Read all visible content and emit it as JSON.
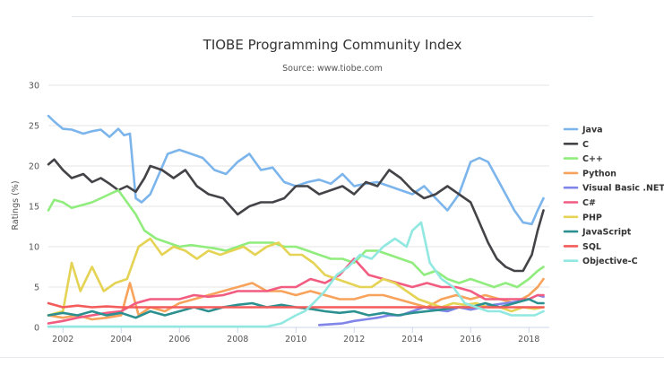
{
  "chart_data": {
    "type": "line",
    "title": "TIOBE Programming Community Index",
    "subtitle": "Source: www.tiobe.com",
    "xlabel": "",
    "ylabel": "Ratings (%)",
    "xlim": [
      2001.5,
      2018.7
    ],
    "ylim": [
      0,
      30
    ],
    "xticks": [
      2002,
      2004,
      2006,
      2008,
      2010,
      2012,
      2014,
      2016,
      2018
    ],
    "xtick_labels": [
      "2002",
      "2004",
      "2006",
      "2008",
      "2010",
      "2012",
      "2014",
      "2016",
      "2018"
    ],
    "yticks": [
      0,
      5,
      10,
      15,
      20,
      25,
      30
    ],
    "ytick_labels": [
      "0",
      "5",
      "10",
      "15",
      "20",
      "25",
      "30"
    ],
    "grid": "y-major",
    "legend": "right",
    "series": [
      {
        "name": "Java",
        "color": "#7cb5ec",
        "x": [
          2001.5,
          2001.7,
          2002,
          2002.3,
          2002.7,
          2003,
          2003.3,
          2003.6,
          2003.9,
          2004.1,
          2004.3,
          2004.5,
          2004.7,
          2005,
          2005.3,
          2005.6,
          2006,
          2006.4,
          2006.8,
          2007.2,
          2007.6,
          2008,
          2008.4,
          2008.8,
          2009.2,
          2009.6,
          2010,
          2010.4,
          2010.8,
          2011.2,
          2011.6,
          2012,
          2012.4,
          2012.8,
          2013.2,
          2013.6,
          2014,
          2014.4,
          2014.8,
          2015.2,
          2015.6,
          2016,
          2016.3,
          2016.6,
          2016.9,
          2017.2,
          2017.5,
          2017.8,
          2018.1,
          2018.3,
          2018.5
        ],
        "y": [
          26.2,
          25.5,
          24.6,
          24.5,
          24.0,
          24.3,
          24.5,
          23.6,
          24.6,
          23.8,
          24.0,
          16.0,
          15.5,
          16.5,
          19.0,
          21.5,
          22.0,
          21.5,
          21.0,
          19.5,
          19.0,
          20.5,
          21.5,
          19.5,
          19.8,
          18.0,
          17.5,
          18.0,
          18.3,
          17.8,
          19.0,
          17.5,
          17.8,
          18.0,
          17.5,
          17.0,
          16.5,
          17.5,
          16.0,
          14.5,
          16.5,
          20.5,
          21.0,
          20.5,
          18.5,
          16.5,
          14.5,
          13.0,
          12.8,
          14.5,
          16.0
        ]
      },
      {
        "name": "C",
        "color": "#434348",
        "x": [
          2001.5,
          2001.7,
          2002,
          2002.3,
          2002.7,
          2003,
          2003.3,
          2003.6,
          2003.9,
          2004.2,
          2004.5,
          2004.8,
          2005,
          2005.4,
          2005.8,
          2006.2,
          2006.6,
          2007,
          2007.5,
          2008,
          2008.4,
          2008.8,
          2009.2,
          2009.6,
          2010,
          2010.4,
          2010.8,
          2011.2,
          2011.6,
          2012,
          2012.4,
          2012.8,
          2013.2,
          2013.6,
          2014,
          2014.4,
          2014.8,
          2015.2,
          2015.6,
          2016,
          2016.3,
          2016.6,
          2016.9,
          2017.2,
          2017.5,
          2017.8,
          2018.1,
          2018.3,
          2018.5
        ],
        "y": [
          20.2,
          20.8,
          19.5,
          18.5,
          19.0,
          18.0,
          18.5,
          17.8,
          17.0,
          17.5,
          16.8,
          18.5,
          20.0,
          19.5,
          18.5,
          19.5,
          17.5,
          16.5,
          16.0,
          14.0,
          15.0,
          15.5,
          15.5,
          16.0,
          17.5,
          17.5,
          16.5,
          17.0,
          17.5,
          16.5,
          18.0,
          17.5,
          19.5,
          18.5,
          17.0,
          16.0,
          16.5,
          17.5,
          16.5,
          15.5,
          13.0,
          10.5,
          8.5,
          7.5,
          7.0,
          7.0,
          9.0,
          12.0,
          14.5
        ]
      },
      {
        "name": "C++",
        "color": "#90ed7d",
        "x": [
          2001.5,
          2001.7,
          2002,
          2002.3,
          2002.7,
          2003,
          2003.3,
          2003.6,
          2003.9,
          2004.2,
          2004.5,
          2004.8,
          2005.2,
          2005.6,
          2006,
          2006.4,
          2006.8,
          2007.2,
          2007.6,
          2008,
          2008.4,
          2008.8,
          2009.2,
          2009.6,
          2010,
          2010.4,
          2010.8,
          2011.2,
          2011.6,
          2012,
          2012.4,
          2012.8,
          2013.2,
          2013.6,
          2014,
          2014.4,
          2014.8,
          2015.2,
          2015.6,
          2016,
          2016.4,
          2016.8,
          2017.2,
          2017.6,
          2018,
          2018.3,
          2018.5
        ],
        "y": [
          14.5,
          15.8,
          15.5,
          14.8,
          15.2,
          15.5,
          16.0,
          16.5,
          17.0,
          15.5,
          14.0,
          12.0,
          11.0,
          10.5,
          10.0,
          10.2,
          10.0,
          9.8,
          9.5,
          10.0,
          10.5,
          10.5,
          10.5,
          10.0,
          10.0,
          9.5,
          9.0,
          8.5,
          8.5,
          8.0,
          9.5,
          9.5,
          9.0,
          8.5,
          8.0,
          6.5,
          7.0,
          6.0,
          5.5,
          6.0,
          5.5,
          5.0,
          5.5,
          5.0,
          6.0,
          7.0,
          7.5
        ]
      },
      {
        "name": "Python",
        "color": "#f7a35c",
        "x": [
          2001.5,
          2002,
          2002.5,
          2003,
          2003.5,
          2004,
          2004.3,
          2004.6,
          2005,
          2005.5,
          2006,
          2006.5,
          2007,
          2007.5,
          2008,
          2008.5,
          2009,
          2009.5,
          2010,
          2010.5,
          2011,
          2011.5,
          2012,
          2012.5,
          2013,
          2013.5,
          2014,
          2014.5,
          2015,
          2015.5,
          2016,
          2016.5,
          2017,
          2017.5,
          2018,
          2018.3,
          2018.5
        ],
        "y": [
          1.5,
          1.2,
          1.5,
          1.0,
          1.2,
          1.5,
          5.5,
          1.5,
          2.5,
          2.0,
          3.0,
          3.5,
          4.0,
          4.5,
          5.0,
          5.5,
          4.5,
          4.5,
          4.0,
          4.5,
          4.0,
          3.5,
          3.5,
          4.0,
          4.0,
          3.5,
          3.0,
          2.5,
          3.5,
          4.0,
          3.5,
          4.0,
          3.5,
          3.0,
          4.0,
          5.0,
          6.0
        ]
      },
      {
        "name": "Visual Basic .NET",
        "color": "#8085e9",
        "x": [
          2010.8,
          2011.2,
          2011.6,
          2012,
          2012.4,
          2012.8,
          2013.2,
          2013.6,
          2014,
          2014.4,
          2014.8,
          2015.2,
          2015.6,
          2016,
          2016.4,
          2016.8,
          2017.2,
          2017.6,
          2018,
          2018.3,
          2018.5
        ],
        "y": [
          0.3,
          0.4,
          0.5,
          0.8,
          1.0,
          1.2,
          1.5,
          1.5,
          2.0,
          2.5,
          2.2,
          2.0,
          2.5,
          2.2,
          2.5,
          2.8,
          3.0,
          3.2,
          3.5,
          4.0,
          3.8
        ]
      },
      {
        "name": "C#",
        "color": "#f15c80",
        "x": [
          2001.5,
          2002,
          2002.5,
          2003,
          2003.5,
          2004,
          2004.5,
          2005,
          2005.5,
          2006,
          2006.5,
          2007,
          2007.5,
          2008,
          2008.5,
          2009,
          2009.5,
          2010,
          2010.5,
          2011,
          2011.5,
          2012,
          2012.5,
          2013,
          2013.5,
          2014,
          2014.5,
          2015,
          2015.5,
          2016,
          2016.5,
          2017,
          2017.5,
          2018,
          2018.3,
          2018.5
        ],
        "y": [
          0.5,
          0.8,
          1.2,
          1.5,
          1.8,
          2.0,
          3.0,
          3.5,
          3.5,
          3.5,
          4.0,
          3.8,
          4.0,
          4.5,
          4.5,
          4.5,
          5.0,
          5.0,
          6.0,
          5.5,
          6.5,
          8.5,
          6.5,
          6.0,
          5.5,
          5.0,
          5.5,
          5.0,
          5.0,
          4.5,
          3.5,
          3.5,
          3.5,
          3.5,
          4.0,
          4.0
        ]
      },
      {
        "name": "PHP",
        "color": "#e4d354",
        "x": [
          2001.5,
          2002,
          2002.3,
          2002.6,
          2003,
          2003.4,
          2003.8,
          2004.2,
          2004.6,
          2005,
          2005.4,
          2005.8,
          2006.2,
          2006.6,
          2007,
          2007.4,
          2007.8,
          2008.2,
          2008.6,
          2009,
          2009.4,
          2009.8,
          2010.2,
          2010.6,
          2011,
          2011.4,
          2011.8,
          2012.2,
          2012.6,
          2013,
          2013.4,
          2013.8,
          2014.2,
          2014.6,
          2015,
          2015.4,
          2015.8,
          2016.2,
          2016.6,
          2017,
          2017.4,
          2017.8,
          2018.2,
          2018.5
        ],
        "y": [
          1.5,
          2.0,
          8.0,
          4.5,
          7.5,
          4.5,
          5.5,
          6.0,
          10.0,
          11.0,
          9.0,
          10.0,
          9.5,
          8.5,
          9.5,
          9.0,
          9.5,
          10.0,
          9.0,
          10.0,
          10.5,
          9.0,
          9.0,
          8.0,
          6.5,
          6.0,
          5.5,
          5.0,
          5.0,
          6.0,
          5.5,
          4.5,
          3.5,
          3.0,
          2.5,
          3.0,
          2.8,
          3.0,
          2.5,
          2.5,
          2.0,
          2.5,
          2.3,
          2.5
        ]
      },
      {
        "name": "JavaScript",
        "color": "#2b908f",
        "x": [
          2001.5,
          2002,
          2002.5,
          2003,
          2003.5,
          2004,
          2004.5,
          2005,
          2005.5,
          2006,
          2006.5,
          2007,
          2007.5,
          2008,
          2008.5,
          2009,
          2009.5,
          2010,
          2010.5,
          2011,
          2011.5,
          2012,
          2012.5,
          2013,
          2013.5,
          2014,
          2014.5,
          2015,
          2015.5,
          2016,
          2016.5,
          2017,
          2017.5,
          2018,
          2018.3,
          2018.5
        ],
        "y": [
          1.5,
          1.8,
          1.5,
          2.0,
          1.5,
          1.8,
          1.2,
          2.0,
          1.5,
          2.0,
          2.5,
          2.0,
          2.5,
          2.8,
          3.0,
          2.5,
          2.8,
          2.5,
          2.3,
          2.0,
          1.8,
          2.0,
          1.5,
          1.8,
          1.5,
          1.8,
          2.0,
          2.2,
          2.5,
          2.5,
          3.0,
          2.5,
          3.0,
          3.5,
          3.0,
          3.0
        ]
      },
      {
        "name": "SQL",
        "color": "#f45b5b",
        "x": [
          2001.5,
          2002,
          2002.5,
          2003,
          2003.5,
          2004,
          2004.2,
          2006,
          2010,
          2014,
          2016,
          2017,
          2018,
          2018.5
        ],
        "y": [
          3.0,
          2.5,
          2.7,
          2.5,
          2.6,
          2.5,
          2.5,
          2.5,
          2.5,
          2.5,
          2.5,
          2.5,
          2.5,
          2.5
        ]
      },
      {
        "name": "Objective-C",
        "color": "#91e8e1",
        "x": [
          2001.5,
          2006,
          2009,
          2009.5,
          2010,
          2010.3,
          2010.6,
          2011,
          2011.4,
          2011.8,
          2012.2,
          2012.6,
          2013,
          2013.4,
          2013.8,
          2014,
          2014.3,
          2014.6,
          2015,
          2015.4,
          2015.8,
          2016.2,
          2016.6,
          2017,
          2017.4,
          2017.8,
          2018.2,
          2018.5
        ],
        "y": [
          0.1,
          0.1,
          0.1,
          0.5,
          1.5,
          2.0,
          3.0,
          4.5,
          6.5,
          7.5,
          9.0,
          8.5,
          10.0,
          11.0,
          10.0,
          12.0,
          13.0,
          8.0,
          6.0,
          5.0,
          3.0,
          2.5,
          2.0,
          2.0,
          1.5,
          1.5,
          1.5,
          2.0
        ]
      }
    ]
  }
}
